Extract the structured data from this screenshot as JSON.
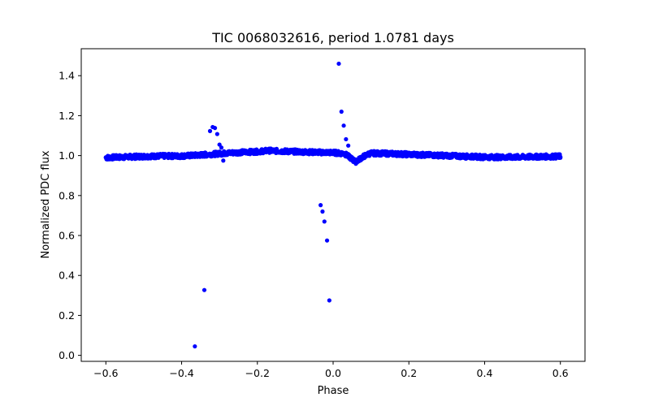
{
  "chart_data": {
    "type": "scatter",
    "title": "TIC 0068032616, period 1.0781 days",
    "xlabel": "Phase",
    "ylabel": "Normalized PDC flux",
    "xlim": [
      -0.665,
      0.665
    ],
    "ylim": [
      -0.03,
      1.535
    ],
    "xticks": [
      -0.6,
      -0.4,
      -0.2,
      0.0,
      0.2,
      0.4,
      0.6
    ],
    "xtick_labels": [
      "−0.6",
      "−0.4",
      "−0.2",
      "0.0",
      "0.2",
      "0.4",
      "0.6"
    ],
    "yticks": [
      0.0,
      0.2,
      0.4,
      0.6,
      0.8,
      1.0,
      1.2,
      1.4
    ],
    "ytick_labels": [
      "0.0",
      "0.2",
      "0.4",
      "0.6",
      "0.8",
      "1.0",
      "1.2",
      "1.4"
    ],
    "marker_color": "#0000ff",
    "baseline_series": {
      "x": [
        -0.6,
        -0.55,
        -0.5,
        -0.45,
        -0.4,
        -0.35,
        -0.3,
        -0.25,
        -0.2,
        -0.17,
        -0.15,
        -0.1,
        -0.05,
        0.0,
        0.03,
        0.045,
        0.055,
        0.06,
        0.065,
        0.075,
        0.09,
        0.1,
        0.15,
        0.2,
        0.25,
        0.3,
        0.35,
        0.4,
        0.45,
        0.5,
        0.55,
        0.6
      ],
      "y": [
        0.99,
        0.993,
        0.996,
        0.998,
        0.998,
        1.003,
        1.01,
        1.016,
        1.02,
        1.025,
        1.023,
        1.02,
        1.017,
        1.015,
        1.01,
        0.99,
        0.975,
        0.97,
        0.975,
        0.99,
        1.005,
        1.012,
        1.01,
        1.006,
        1.003,
        1.0,
        0.996,
        0.993,
        0.992,
        0.993,
        0.995,
        0.996
      ]
    },
    "outlier_series": {
      "x": [
        -0.365,
        -0.34,
        -0.325,
        -0.318,
        -0.312,
        -0.306,
        -0.3,
        -0.295,
        -0.29,
        -0.033,
        -0.028,
        -0.023,
        -0.016,
        -0.01,
        0.015,
        0.022,
        0.028,
        0.034,
        0.04
      ],
      "y": [
        0.045,
        0.327,
        1.123,
        1.143,
        1.138,
        1.108,
        1.055,
        1.04,
        0.975,
        0.752,
        0.72,
        0.67,
        0.575,
        0.275,
        1.46,
        1.22,
        1.15,
        1.082,
        1.05
      ]
    }
  }
}
